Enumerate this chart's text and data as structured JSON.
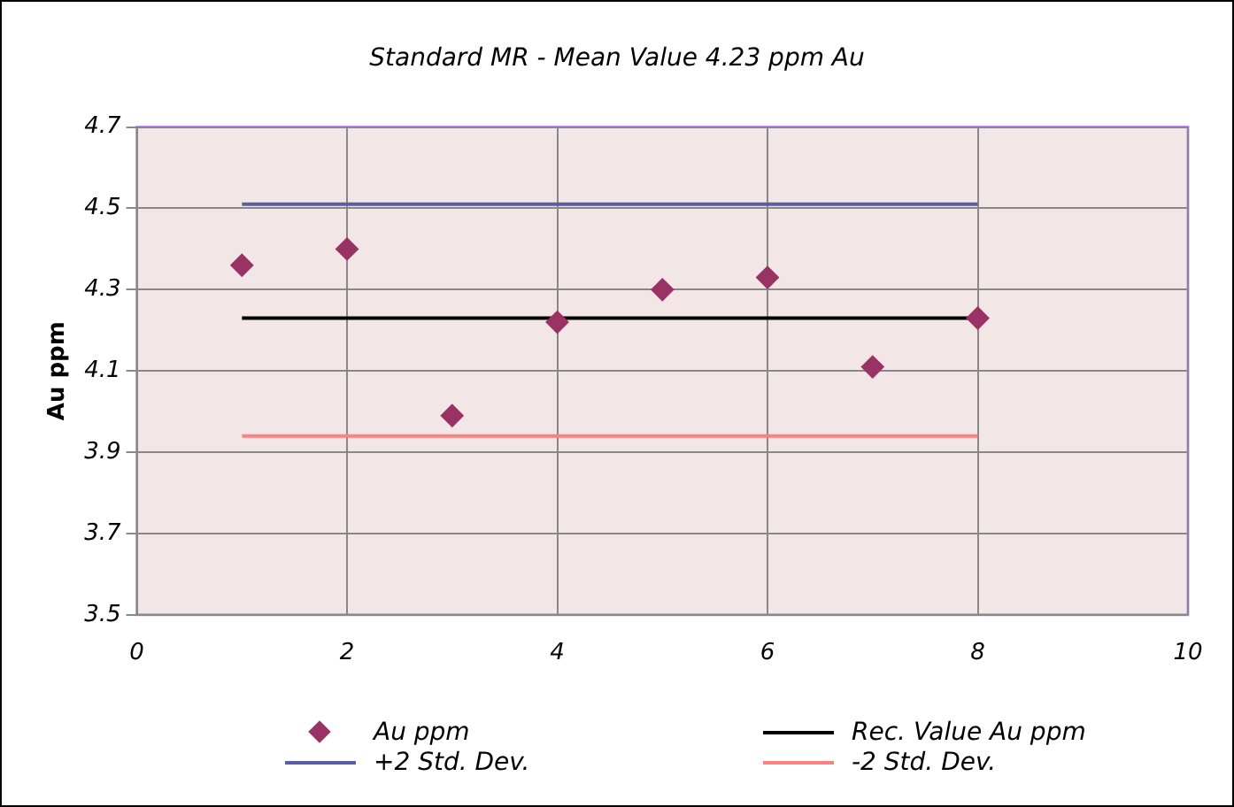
{
  "chart_data": {
    "type": "scatter",
    "title": "Standard MR - Mean Value 4.23 ppm Au",
    "ylabel": "Au ppm",
    "x": [
      1,
      2,
      3,
      4,
      5,
      6,
      7,
      8
    ],
    "series": [
      {
        "name": "Au ppm",
        "color": "#993366",
        "marker": "diamond",
        "values": [
          4.36,
          4.4,
          3.99,
          4.22,
          4.3,
          4.33,
          4.11,
          4.23
        ]
      },
      {
        "name": "Rec. Value Au ppm",
        "type": "line",
        "color": "#000000",
        "marker": "none",
        "values": [
          4.23,
          4.23,
          4.23,
          4.23,
          4.23,
          4.23,
          4.23,
          4.23
        ]
      },
      {
        "name": "+2 Std. Dev.",
        "type": "line",
        "color": "#5b5ea6",
        "marker": "none",
        "values": [
          4.51,
          4.51,
          4.51,
          4.51,
          4.51,
          4.51,
          4.51,
          4.51
        ]
      },
      {
        "name": "-2 Std. Dev.",
        "type": "line",
        "color": "#ff8080",
        "marker": "none",
        "values": [
          3.94,
          3.94,
          3.94,
          3.94,
          3.94,
          3.94,
          3.94,
          3.94
        ]
      }
    ],
    "xlim": [
      0,
      10
    ],
    "xticks": [
      0,
      2,
      4,
      6,
      8,
      10
    ],
    "ylim": [
      3.5,
      4.7
    ],
    "yticks": [
      3.5,
      3.7,
      3.9,
      4.1,
      4.3,
      4.5,
      4.7
    ],
    "grid": true,
    "legend": "bottom"
  }
}
